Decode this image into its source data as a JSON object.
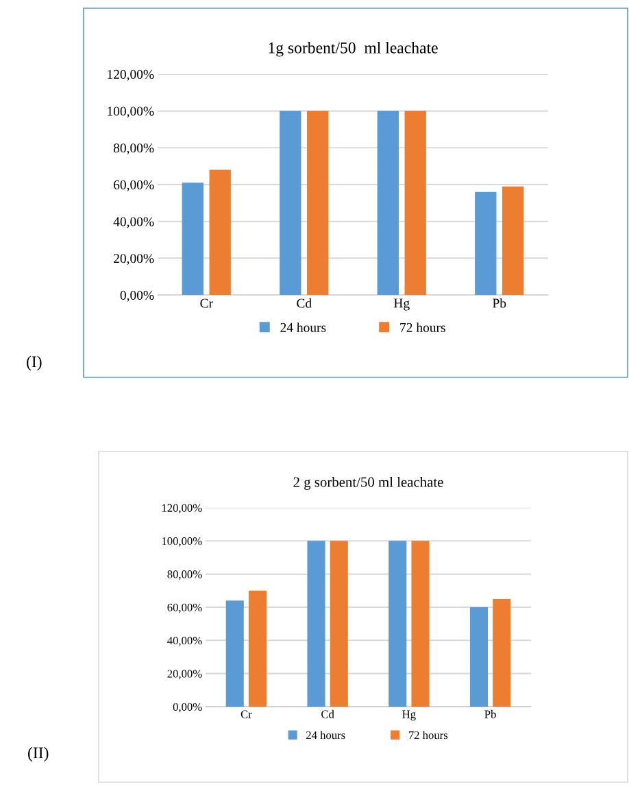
{
  "chart_data": [
    {
      "type": "bar",
      "title": "1g sorbent/50  ml leachate",
      "categories": [
        "Cr",
        "Cd",
        "Hg",
        "Pb"
      ],
      "series": [
        {
          "name": "24 hours",
          "color": "#5b9bd5",
          "values": [
            61,
            100,
            100,
            56
          ]
        },
        {
          "name": "72 hours",
          "color": "#ed7d31",
          "values": [
            68,
            100,
            100,
            59
          ]
        }
      ],
      "ylim": [
        0,
        120
      ],
      "yticks": [
        {
          "value": 0,
          "label": "0,00%"
        },
        {
          "value": 20,
          "label": "20,00%"
        },
        {
          "value": 40,
          "label": "40,00%"
        },
        {
          "value": 60,
          "label": "60,00%"
        },
        {
          "value": 80,
          "label": "80,00%"
        },
        {
          "value": 100,
          "label": "100,00%"
        },
        {
          "value": 120,
          "label": "120,00%"
        }
      ],
      "grid": "y",
      "legend": "bottom",
      "annotations": [
        "(I)"
      ]
    },
    {
      "type": "bar",
      "title": "2 g sorbent/50 ml leachate",
      "categories": [
        "Cr",
        "Cd",
        "Hg",
        "Pb"
      ],
      "series": [
        {
          "name": "24 hours",
          "color": "#5b9bd5",
          "values": [
            64,
            100,
            100,
            60
          ]
        },
        {
          "name": "72 hours",
          "color": "#ed7d31",
          "values": [
            70,
            100,
            100,
            65
          ]
        }
      ],
      "ylim": [
        0,
        120
      ],
      "yticks": [
        {
          "value": 0,
          "label": "0,00%"
        },
        {
          "value": 20,
          "label": "20,00%"
        },
        {
          "value": 40,
          "label": "40,00%"
        },
        {
          "value": 60,
          "label": "60,00%"
        },
        {
          "value": 80,
          "label": "80,00%"
        },
        {
          "value": 100,
          "label": "100,00%"
        },
        {
          "value": 120,
          "label": "120,00%"
        }
      ],
      "grid": "y",
      "legend": "bottom",
      "annotations": [
        "(II)"
      ]
    }
  ]
}
